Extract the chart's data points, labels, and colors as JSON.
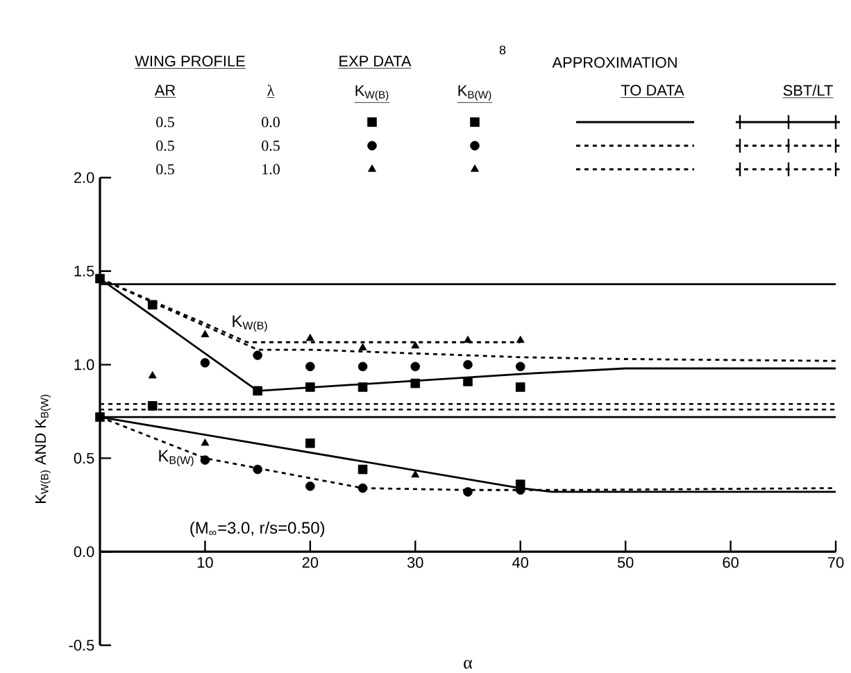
{
  "chart_data": {
    "type": "scatter",
    "xlabel": "α",
    "ylabel": "K$_{W(B)}$ AND K$_{B(W)}$",
    "xlim": [
      0,
      70
    ],
    "ylim": [
      -0.5,
      2.0
    ],
    "xticks": [
      10,
      20,
      30,
      40,
      50,
      60,
      70
    ],
    "yticks": [
      {
        "value": -0.5,
        "label": "-0.5"
      },
      {
        "value": 0,
        "label": "0.0"
      },
      {
        "value": 0.5,
        "label": "0.5"
      },
      {
        "value": 1,
        "label": "1.0"
      },
      {
        "value": 1.5,
        "label": "1.5"
      },
      {
        "value": 2,
        "label": "2.0"
      }
    ],
    "series": [
      {
        "color": "#000000",
        "marker": "square",
        "x": [
          0,
          5,
          20,
          25,
          30,
          35,
          40
        ],
        "values": [
          1.46,
          1.32,
          0.88,
          0.88,
          0.9,
          0.91,
          0.88
        ]
      },
      {
        "color": "#000000",
        "marker": "circle",
        "x": [
          10,
          15,
          20,
          25,
          30,
          35,
          40
        ],
        "values": [
          1.01,
          1.05,
          0.99,
          0.99,
          0.99,
          1.0,
          0.99
        ]
      },
      {
        "color": "#000000",
        "marker": "triangle",
        "x": [
          10,
          20,
          25,
          30,
          35,
          40
        ],
        "values": [
          1.16,
          1.14,
          1.09,
          1.1,
          1.13,
          1.13
        ]
      },
      {
        "color": "#000000",
        "marker": "square",
        "x": [
          0,
          5,
          15,
          20,
          25,
          40
        ],
        "values": [
          0.72,
          0.78,
          0.86,
          0.58,
          0.44,
          0.36
        ]
      },
      {
        "color": "#000000",
        "marker": "circle",
        "x": [
          10,
          15,
          20,
          25,
          35,
          40
        ],
        "values": [
          0.49,
          0.44,
          0.35,
          0.34,
          0.32,
          0.33
        ]
      },
      {
        "color": "#000000",
        "marker": "triangle",
        "x": [
          5,
          10,
          30
        ],
        "values": [
          0.94,
          0.58,
          0.41
        ]
      },
      {
        "type": "line",
        "color": "#000000",
        "marker": "none",
        "line_style": "solid",
        "x": [
          0,
          15,
          40,
          50,
          70
        ],
        "values": [
          1.46,
          0.86,
          0.95,
          0.98,
          0.98
        ]
      },
      {
        "type": "line",
        "color": "#000000",
        "marker": "none",
        "line_style": "dashed",
        "x": [
          0,
          15,
          20,
          40,
          50,
          70
        ],
        "values": [
          1.46,
          1.08,
          1.08,
          1.04,
          1.03,
          1.02
        ]
      },
      {
        "type": "line",
        "color": "#000000",
        "marker": "none",
        "line_style": "dashed",
        "x": [
          0,
          10,
          14,
          20,
          40
        ],
        "values": [
          1.46,
          1.22,
          1.12,
          1.12,
          1.12
        ]
      },
      {
        "type": "line",
        "color": "#000000",
        "marker": "none",
        "line_style": "solid",
        "x": [
          0,
          40,
          43,
          70
        ],
        "values": [
          0.72,
          0.34,
          0.32,
          0.32
        ]
      },
      {
        "type": "line",
        "color": "#000000",
        "marker": "none",
        "line_style": "dashed",
        "x": [
          0,
          10,
          25,
          35,
          45,
          70
        ],
        "values": [
          0.72,
          0.5,
          0.34,
          0.33,
          0.33,
          0.34
        ]
      }
    ],
    "ref_lines": [
      {
        "axis": "y",
        "value": 1.43,
        "line_style": "solid",
        "color": "#000000"
      },
      {
        "axis": "y",
        "value": 0.72,
        "line_style": "solid",
        "color": "#000000"
      },
      {
        "axis": "y",
        "value": 0.79,
        "line_style": "dashed",
        "color": "#000000"
      },
      {
        "axis": "y",
        "value": 0.76,
        "line_style": "dashed",
        "color": "#000000"
      }
    ],
    "annotations": [
      "WING PROFILE",
      "EXP DATA",
      "8",
      "APPROXIMATION",
      "TO DATA",
      "SBT/LT",
      "AR",
      "λ",
      "K$_{W(B)}$",
      "K$_{B(W)}$",
      "0.5",
      "0.0",
      "0.5",
      "0.5",
      "0.5",
      "1.0",
      "(M$_{∞}$=3.0, r/s=0.50)",
      "K$_{W(B)}$",
      "K$_{B(W)}$"
    ]
  }
}
